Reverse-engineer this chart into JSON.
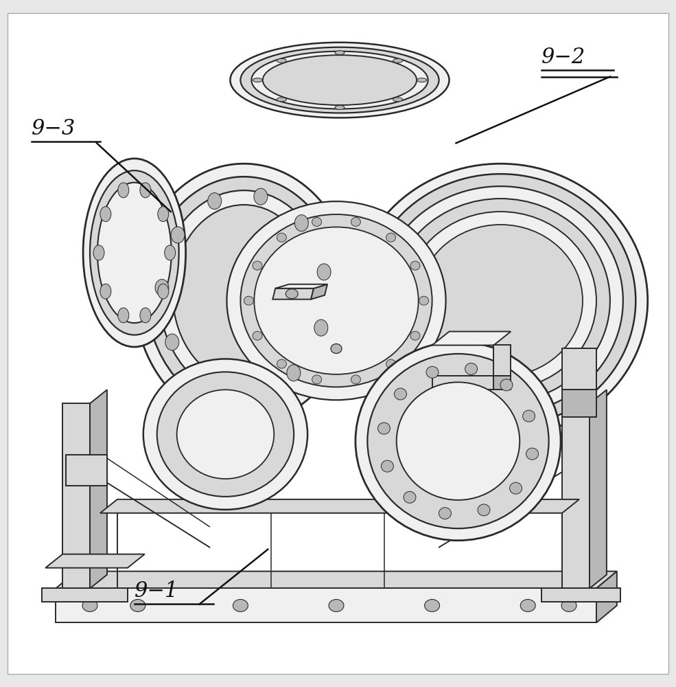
{
  "fig_width": 9.85,
  "fig_height": 10.0,
  "dpi": 100,
  "bg_color": "#e8e8e8",
  "drawing_bg": "#ffffff",
  "line_color": "#2a2a2a",
  "label_93": "9−3",
  "label_92": "9−2",
  "label_91": "9−1",
  "font_size": 22,
  "line_width": 1.4,
  "C_white": "#ffffff",
  "C_light": "#f0f0f0",
  "C_mid": "#d8d8d8",
  "C_dark": "#b8b8b8",
  "C_line": "#2a2a2a",
  "C_shade": "#c0c0c0"
}
